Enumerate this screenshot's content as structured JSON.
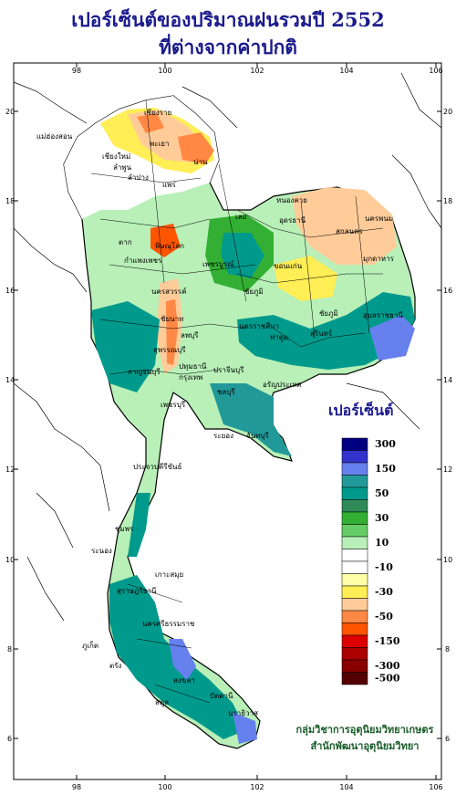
{
  "title": {
    "line1": "เปอร์เซ็นต์ของปริมาณฝนรวมปี 2552",
    "line2": "ที่ต่างจากค่าปกติ"
  },
  "axes": {
    "longitude_ticks": [
      "98",
      "100",
      "102",
      "104",
      "106"
    ],
    "latitude_ticks": [
      "20",
      "18",
      "16",
      "14",
      "12",
      "10",
      "8",
      "6"
    ]
  },
  "legend": {
    "title": "เปอร์เซ็นต์",
    "classes": [
      {
        "label": "300",
        "color": "#000080"
      },
      {
        "label": "",
        "color": "#3333cc"
      },
      {
        "label": "150",
        "color": "#6680ee"
      },
      {
        "label": "",
        "color": "#229999"
      },
      {
        "label": "50",
        "color": "#009a8c"
      },
      {
        "label": "",
        "color": "#2e8b57"
      },
      {
        "label": "30",
        "color": "#33b033"
      },
      {
        "label": "",
        "color": "#66cc66"
      },
      {
        "label": "10",
        "color": "#b8f0b8"
      },
      {
        "label": "",
        "color": "#ffffff"
      },
      {
        "label": "-10",
        "color": "#ffffff"
      },
      {
        "label": "",
        "color": "#ffffaa"
      },
      {
        "label": "-30",
        "color": "#ffee55"
      },
      {
        "label": "",
        "color": "#ffcc99"
      },
      {
        "label": "-50",
        "color": "#ff8844"
      },
      {
        "label": "",
        "color": "#ff5500"
      },
      {
        "label": "-150",
        "color": "#dd0000"
      },
      {
        "label": "",
        "color": "#aa0000"
      },
      {
        "label": "-300",
        "color": "#880000"
      },
      {
        "label": "-500",
        "color": "#550000"
      }
    ]
  },
  "places": [
    "เชียงราย",
    "แม่ฮ่องสอน",
    "เชียงใหม่",
    "พะเยา",
    "น่าน",
    "ลำพูน",
    "ลำปาง",
    "แพร่",
    "เลย",
    "หนองคาย",
    "อุดรธานี",
    "สกลนคร",
    "นครพนม",
    "มุกดาหาร",
    "ตาก",
    "พิษณุโลก",
    "กำแพงเพชร",
    "เพชรบูรณ์",
    "ขอนแก่น",
    "ชัยภูมิ",
    "นครสวรรค์",
    "อุบลราชธานี",
    "สุรินทร์",
    "ชัยนาท",
    "ลพบุรี",
    "นครราชสีมา",
    "ชัยภูมิ",
    "ท่าตูม",
    "กาญจนบุรี",
    "สุพรรณบุรี",
    "ปทุมธานี",
    "ปราจีนบุรี",
    "อรัญประเทศ",
    "กรุงเทพ",
    "ชลบุรี",
    "เพชรบุรี",
    "ระยอง",
    "จันทบุรี",
    "ประจวบคีรีขันธ์",
    "ชุมพร",
    "ระนอง",
    "เกาะสมุย",
    "สุราษฎร์ธานี",
    "นครศรีธรรมราช",
    "ภูเก็ต",
    "ตรัง",
    "สงขลา",
    "ปัตตานี",
    "นราธิวาส",
    "สตูล"
  ],
  "credits": {
    "line1": "กลุ่มวิชาการอุตุนิยมวิทยาเกษตร",
    "line2": "สำนักพัฒนาอุตุนิยมวิทยา"
  }
}
